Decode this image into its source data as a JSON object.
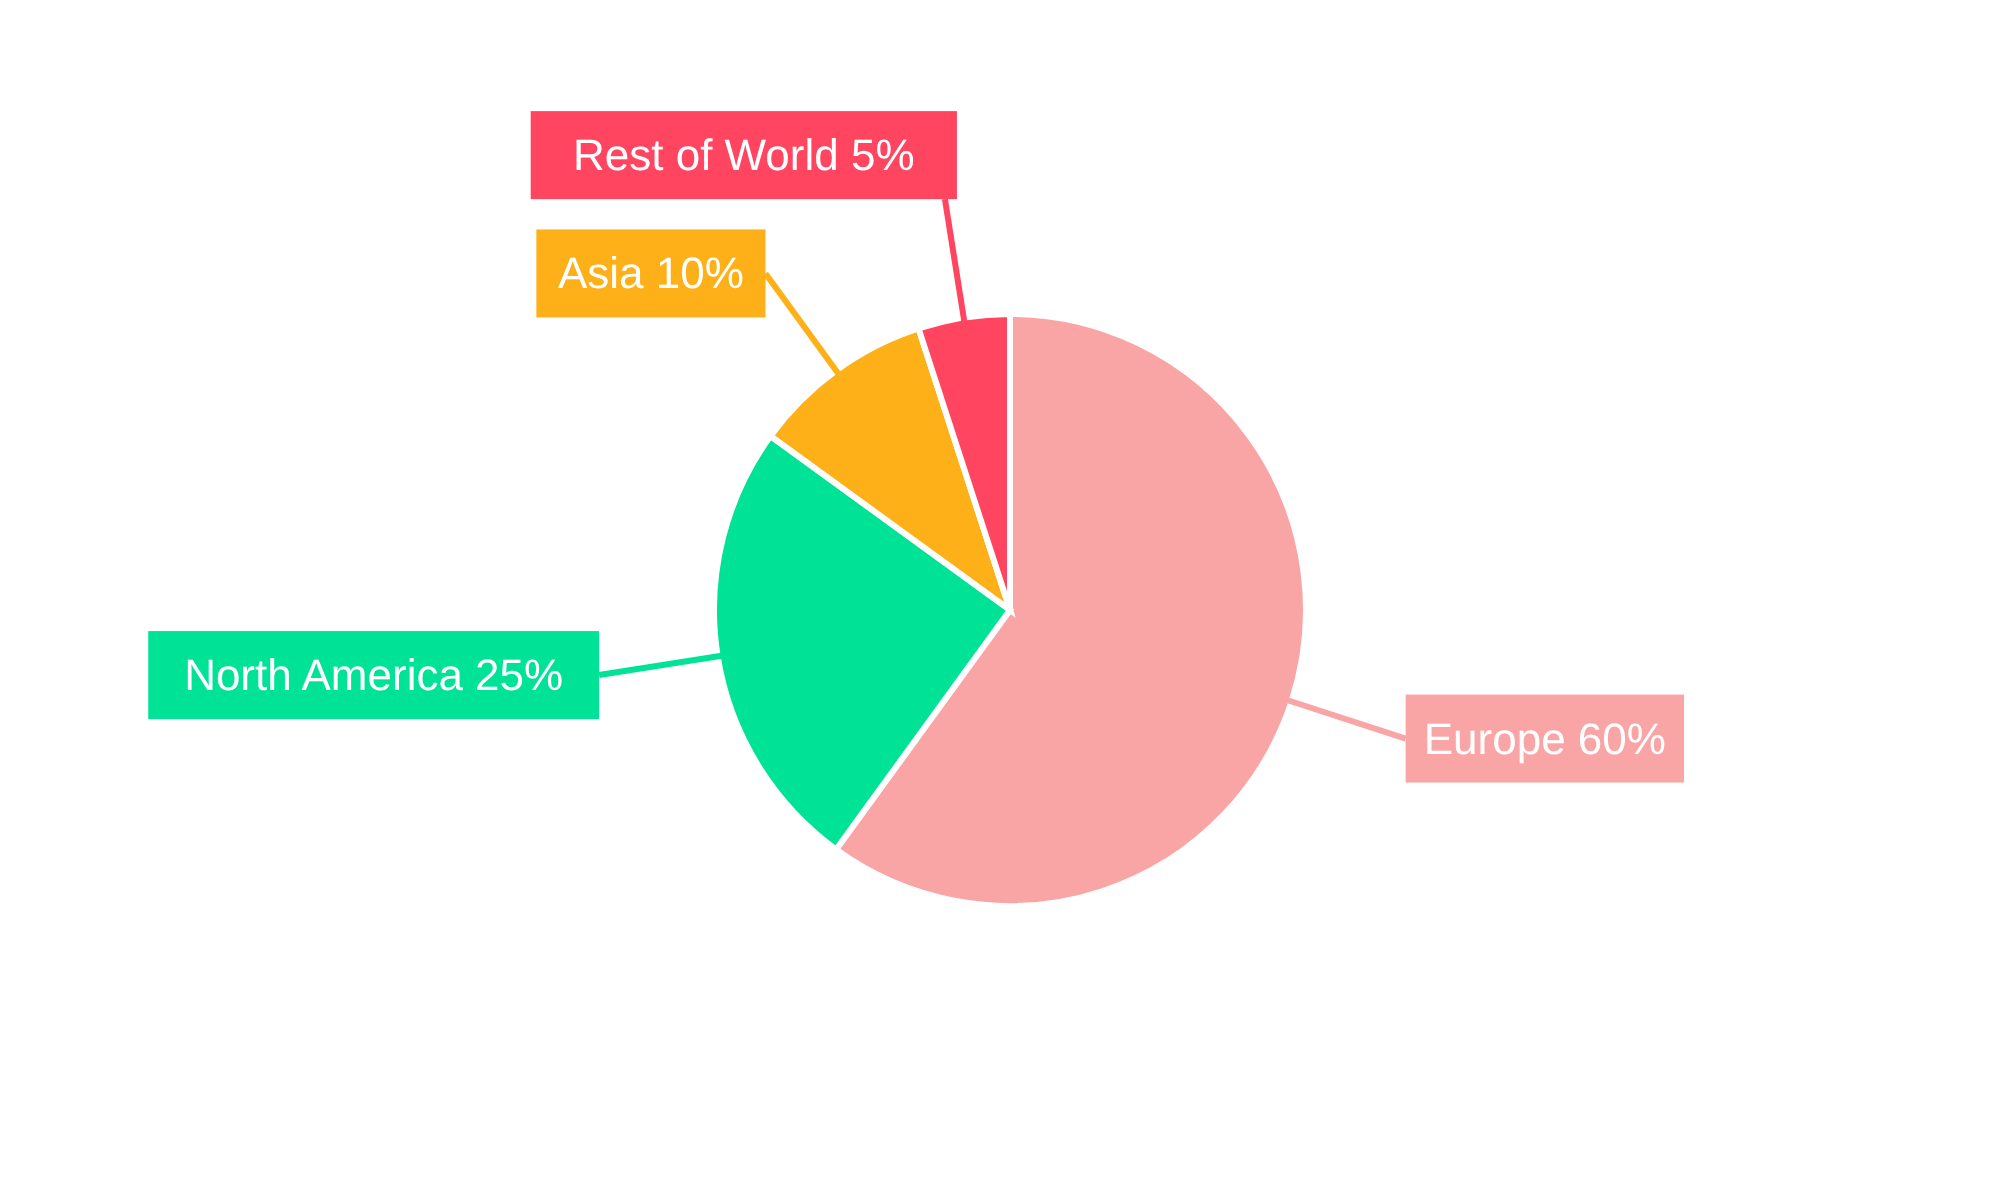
{
  "chart_data": {
    "type": "pie",
    "categories": [
      "Europe",
      "North America",
      "Asia",
      "Rest of World"
    ],
    "values": [
      60,
      25,
      10,
      5
    ],
    "value_labels": [
      "60%",
      "25%",
      "10%",
      "5%"
    ],
    "colors": [
      "#f9a5a5",
      "#00e396",
      "#feb019",
      "#ff4560"
    ],
    "legend": false
  }
}
